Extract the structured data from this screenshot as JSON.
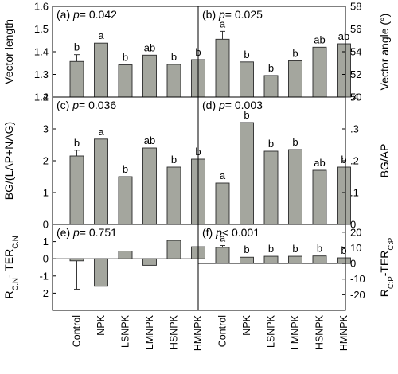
{
  "chart_data": [
    {
      "id": "a",
      "type": "bar",
      "title": "(a) p= 0.042",
      "panel_label": "(a)",
      "p_label": "p",
      "p_value": "= 0.042",
      "ylabel": "Vector length",
      "axis_side": "left",
      "ylim": [
        1.2,
        1.6
      ],
      "yticks": [
        1.2,
        1.3,
        1.4,
        1.5,
        1.6
      ],
      "ytick_labels": [
        "1.2",
        "1.3",
        "1.4",
        "1.5",
        "1.6"
      ],
      "categories": [
        "Control",
        "NPK",
        "LSNPK",
        "LMNPK",
        "HSNPK",
        "HMNPK"
      ],
      "values": [
        1.357,
        1.438,
        1.342,
        1.385,
        1.344,
        1.365
      ],
      "errors": [
        0.03,
        0,
        0,
        0,
        0,
        0
      ],
      "letters": [
        "b",
        "a",
        "b",
        "ab",
        "b",
        "b"
      ],
      "bar_color": "#a4a69e"
    },
    {
      "id": "b",
      "type": "bar",
      "title": "(b) p= 0.025",
      "panel_label": "(b)",
      "p_label": "p",
      "p_value": "= 0.025",
      "ylabel": "Vector angle (°)",
      "axis_side": "right",
      "ylim": [
        50,
        58
      ],
      "yticks": [
        50,
        52,
        54,
        56,
        58
      ],
      "ytick_labels": [
        "50",
        "52",
        "54",
        "56",
        "58"
      ],
      "categories": [
        "Control",
        "NPK",
        "LSNPK",
        "LMNPK",
        "HSNPK",
        "HMNPK"
      ],
      "values": [
        55.1,
        53.1,
        51.9,
        53.2,
        54.4,
        54.7
      ],
      "errors": [
        0.7,
        0,
        0,
        0,
        0,
        0
      ],
      "letters": [
        "a",
        "b",
        "b",
        "b",
        "ab",
        "ab"
      ],
      "bar_color": "#a4a69e"
    },
    {
      "id": "c",
      "type": "bar",
      "title": "(c) p= 0.036",
      "panel_label": "(c)",
      "p_label": "p",
      "p_value": "= 0.036",
      "ylabel": "BG/(LAP+NAG)",
      "axis_side": "left",
      "ylim": [
        0,
        4
      ],
      "yticks": [
        0,
        1,
        2,
        3,
        4
      ],
      "ytick_labels": [
        "0",
        "1",
        "2",
        "3",
        "4"
      ],
      "categories": [
        "Control",
        "NPK",
        "LSNPK",
        "LMNPK",
        "HSNPK",
        "HMNPK"
      ],
      "values": [
        2.15,
        2.68,
        1.5,
        2.4,
        1.8,
        2.05
      ],
      "errors": [
        0.18,
        0,
        0,
        0,
        0,
        0
      ],
      "letters": [
        "b",
        "a",
        "b",
        "ab",
        "b",
        "b"
      ],
      "bar_color": "#a4a69e"
    },
    {
      "id": "d",
      "type": "bar",
      "title": "(d) p= 0.003",
      "panel_label": "(d)",
      "p_label": "p",
      "p_value": "= 0.003",
      "ylabel": "BG/AP",
      "axis_side": "right",
      "ylim": [
        0,
        0.4
      ],
      "yticks": [
        0,
        0.1,
        0.2,
        0.3,
        0.4
      ],
      "ytick_labels": [
        "0",
        ".1",
        ".2",
        ".3",
        ".4"
      ],
      "categories": [
        "Control",
        "NPK",
        "LSNPK",
        "LMNPK",
        "HSNPK",
        "HMNPK"
      ],
      "values": [
        0.13,
        0.32,
        0.23,
        0.235,
        0.17,
        0.18
      ],
      "errors": [
        0,
        0,
        0,
        0,
        0,
        0
      ],
      "letters": [
        "a",
        "b",
        "b",
        "b",
        "ab",
        "b"
      ],
      "bar_color": "#a4a69e"
    },
    {
      "id": "e",
      "type": "bar",
      "title": "(e) p= 0.751",
      "panel_label": "(e)",
      "p_label": "p",
      "p_value": "= 0.751",
      "ylabel_main": "R",
      "ylabel_sub1": "C:N",
      "ylabel_mid": "- TER",
      "ylabel_sub2": "C:N",
      "axis_side": "left",
      "ylim": [
        -3,
        2
      ],
      "yticks": [
        -2,
        -1,
        0,
        1
      ],
      "ytick_labels": [
        "-2",
        "-1",
        "0",
        "1"
      ],
      "categories": [
        "Control",
        "NPK",
        "LSNPK",
        "LMNPK",
        "HSNPK",
        "HMNPK"
      ],
      "values": [
        -0.12,
        -1.6,
        0.45,
        -0.38,
        1.07,
        0.7
      ],
      "errors": [
        1.65,
        0,
        0,
        0,
        0,
        0
      ],
      "letters": [
        "",
        "",
        "",
        "",
        "",
        ""
      ],
      "bar_color": "#a4a69e"
    },
    {
      "id": "f",
      "type": "bar",
      "title": "(f) p< 0.001",
      "panel_label": "(f)",
      "p_label": "p",
      "p_value": "< 0.001",
      "ylabel_main": "R",
      "ylabel_sub1": "C:P",
      "ylabel_mid": "-TER",
      "ylabel_sub2": "C:P",
      "axis_side": "right",
      "ylim": [
        -30,
        25
      ],
      "yticks": [
        -20,
        -10,
        0,
        10,
        20
      ],
      "ytick_labels": [
        "-20",
        "-10",
        "0",
        "10",
        "20"
      ],
      "categories": [
        "Control",
        "NPK",
        "LSNPK",
        "LMNPK",
        "HSNPK",
        "HMNPK"
      ],
      "values": [
        10.3,
        4.0,
        4.6,
        4.6,
        4.8,
        3.6
      ],
      "errors": [
        1.2,
        0,
        0,
        0,
        0,
        0
      ],
      "letters": [
        "a",
        "b",
        "b",
        "b",
        "b",
        "b"
      ],
      "bar_color": "#a4a69e"
    }
  ]
}
